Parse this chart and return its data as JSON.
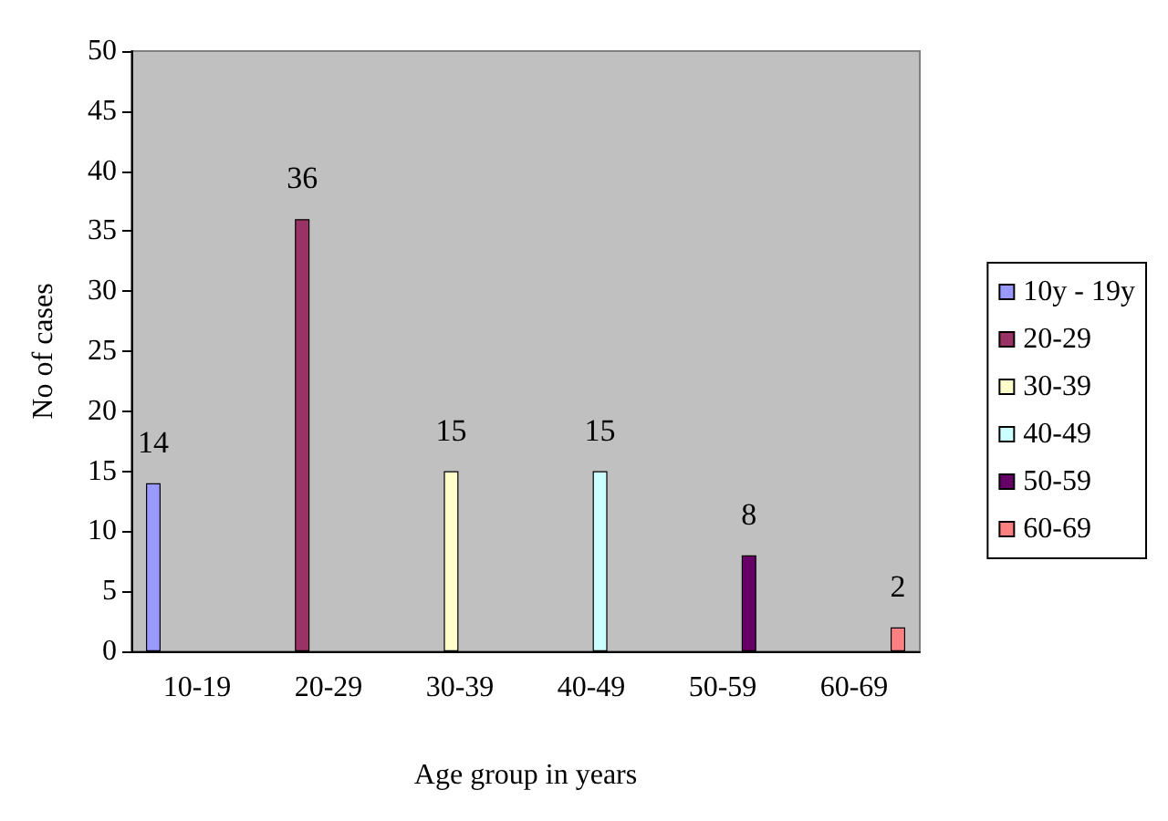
{
  "chart_data": {
    "type": "bar",
    "xlabel": "Age group in years",
    "ylabel": "No of cases",
    "categories": [
      "10-19",
      "20-29",
      "30-39",
      "40-49",
      "50-59",
      "60-69"
    ],
    "series": [
      {
        "name": "10y - 19y",
        "color": "#9999ff",
        "values": [
          14,
          null,
          null,
          null,
          null,
          null
        ]
      },
      {
        "name": "20-29",
        "color": "#993366",
        "values": [
          null,
          36,
          null,
          null,
          null,
          null
        ]
      },
      {
        "name": "30-39",
        "color": "#ffffcc",
        "values": [
          null,
          null,
          15,
          null,
          null,
          null
        ]
      },
      {
        "name": "40-49",
        "color": "#ccffff",
        "values": [
          null,
          null,
          null,
          15,
          null,
          null
        ]
      },
      {
        "name": "50-59",
        "color": "#660066",
        "values": [
          null,
          null,
          null,
          null,
          8,
          null
        ]
      },
      {
        "name": "60-69",
        "color": "#ff8080",
        "values": [
          null,
          null,
          null,
          null,
          null,
          2
        ]
      }
    ],
    "ylim": [
      0,
      50
    ],
    "yticks": [
      0,
      5,
      10,
      15,
      20,
      25,
      30,
      35,
      40,
      45,
      50
    ],
    "grid": false,
    "legend": "right",
    "data_labels": true
  }
}
